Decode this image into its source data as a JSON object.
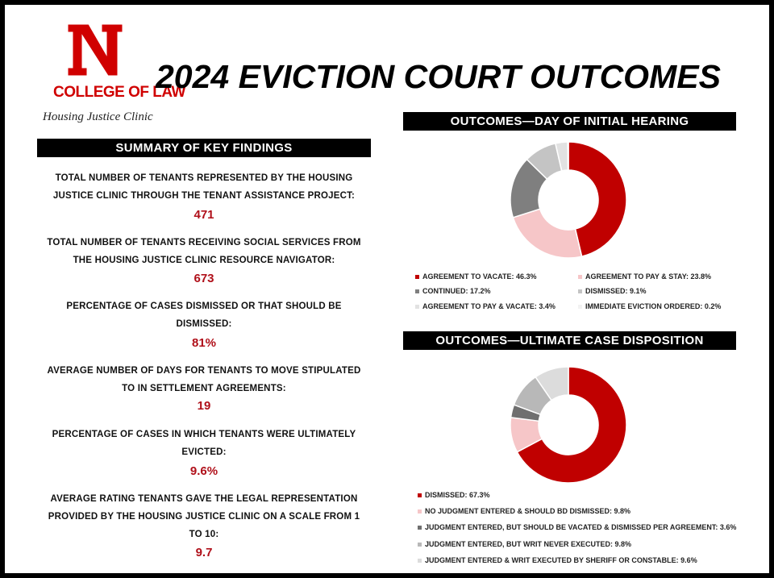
{
  "header": {
    "college": "COLLEGE OF LAW",
    "clinic": "Housing Justice Clinic",
    "title": "2024 EVICTION COURT OUTCOMES"
  },
  "summary": {
    "title": "SUMMARY OF KEY FINDINGS",
    "items": [
      {
        "label": "TOTAL NUMBER OF TENANTS REPRESENTED BY THE HOUSING JUSTICE CLINIC THROUGH THE TENANT ASSISTANCE PROJECT:",
        "value": "471"
      },
      {
        "label": "TOTAL NUMBER OF TENANTS RECEIVING SOCIAL SERVICES FROM THE HOUSING JUSTICE CLINIC RESOURCE NAVIGATOR:",
        "value": "673"
      },
      {
        "label": "PERCENTAGE OF CASES DISMISSED OR THAT SHOULD BE DISMISSED:",
        "value": "81%"
      },
      {
        "label": "AVERAGE NUMBER OF DAYS FOR TENANTS TO MOVE STIPULATED TO IN SETTLEMENT AGREEMENTS:",
        "value": "19"
      },
      {
        "label": "PERCENTAGE OF CASES IN WHICH TENANTS WERE ULTIMATELY EVICTED:",
        "value": "9.6%"
      },
      {
        "label": "AVERAGE RATING TENANTS GAVE THE LEGAL REPRESENTATION PROVIDED BY THE HOUSING JUSTICE CLINIC ON A SCALE FROM 1 TO 10:",
        "value": "9.7"
      }
    ]
  },
  "chart_data": [
    {
      "type": "donut",
      "title": "OUTCOMES—DAY OF INITIAL HEARING",
      "categories": [
        "AGREEMENT TO VACATE: 46.3%",
        "AGREEMENT TO PAY & STAY: 23.8%",
        "CONTINUED: 17.2%",
        "DISMISSED: 9.1%",
        "AGREEMENT TO PAY & VACATE: 3.4%",
        "IMMEDIATE EVICTION ORDERED: 0.2%"
      ],
      "values": [
        46.3,
        23.8,
        17.2,
        9.1,
        3.4,
        0.2
      ],
      "colors": [
        "#c00000",
        "#f6c6c8",
        "#7f7f7f",
        "#c4c4c4",
        "#e2e2e2",
        "#f2f2f2"
      ]
    },
    {
      "type": "donut",
      "title": "OUTCOMES—ULTIMATE CASE DISPOSITION",
      "categories": [
        "DISMISSED: 67.3%",
        "NO JUDGMENT ENTERED & SHOULD BD DISMISSED: 9.8%",
        "JUDGMENT ENTERED, BUT SHOULD BE VACATED & DISMISSED PER AGREEMENT: 3.6%",
        "JUDGMENT ENTERED, BUT WRIT NEVER EXECUTED: 9.8%",
        "JUDGMENT ENTERED & WRIT EXECUTED BY SHERIFF OR CONSTABLE: 9.6%"
      ],
      "values": [
        67.3,
        9.8,
        3.6,
        9.8,
        9.6
      ],
      "colors": [
        "#c00000",
        "#f6c6c8",
        "#6f6f6f",
        "#b8b8b8",
        "#dcdcdc"
      ]
    }
  ]
}
